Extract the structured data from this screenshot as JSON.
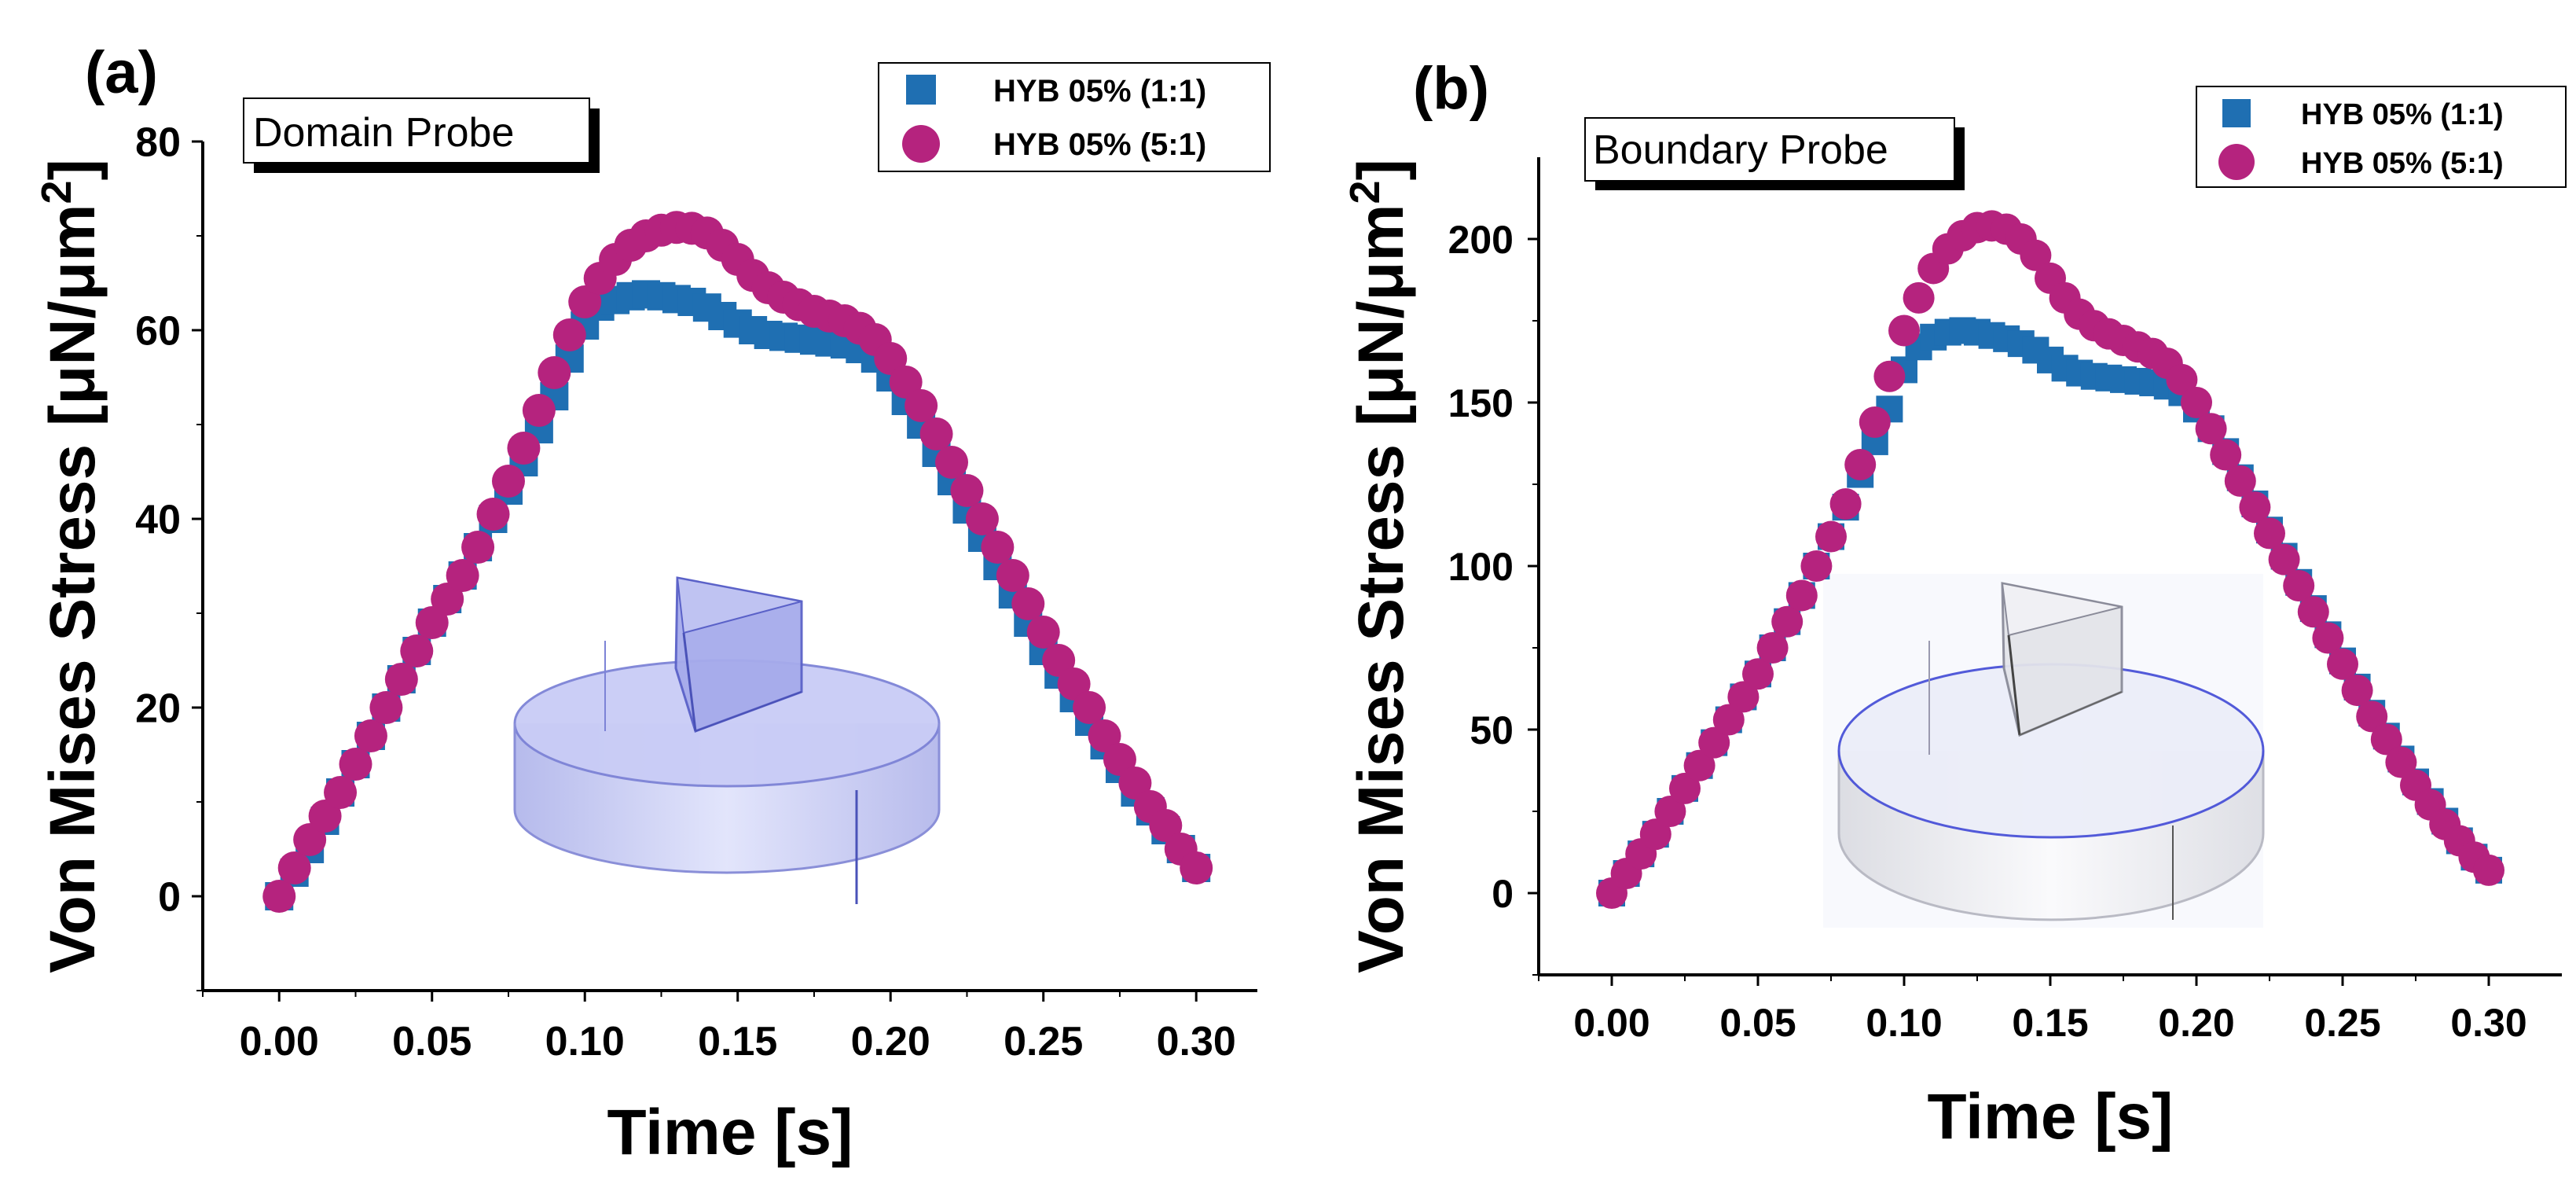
{
  "colors": {
    "series_square": "#1f6fb2",
    "series_circle": "#b5237e",
    "axis": "#000000"
  },
  "chart_data": [
    {
      "panel_label": "(a)",
      "type": "scatter",
      "probe_label": "Domain Probe",
      "xlabel": "Time [s]",
      "ylabel": "Von Mises Stress [μN/μm²]",
      "ylabel_parts": {
        "main": "Von Mises Stress [μN/μm",
        "sup": "2",
        "close": "]"
      },
      "xlim": [
        -0.025,
        0.32
      ],
      "ylim": [
        -10,
        80
      ],
      "xticks": [
        0.0,
        0.05,
        0.1,
        0.15,
        0.2,
        0.25,
        0.3
      ],
      "xtick_labels": [
        "0.00",
        "0.05",
        "0.10",
        "0.15",
        "0.20",
        "0.25",
        "0.30"
      ],
      "yticks": [
        0,
        20,
        40,
        60,
        80
      ],
      "ytick_labels": [
        "0",
        "20",
        "40",
        "60",
        "80"
      ],
      "legend_position": "top-right",
      "series": [
        {
          "name": "HYB 05% (1:1)",
          "marker": "square",
          "x": [
            0.0,
            0.005,
            0.01,
            0.015,
            0.02,
            0.025,
            0.03,
            0.035,
            0.04,
            0.045,
            0.05,
            0.055,
            0.06,
            0.065,
            0.07,
            0.075,
            0.08,
            0.085,
            0.09,
            0.095,
            0.1,
            0.105,
            0.11,
            0.115,
            0.12,
            0.125,
            0.13,
            0.135,
            0.14,
            0.145,
            0.15,
            0.155,
            0.16,
            0.165,
            0.17,
            0.175,
            0.18,
            0.185,
            0.19,
            0.195,
            0.2,
            0.205,
            0.21,
            0.215,
            0.22,
            0.225,
            0.23,
            0.235,
            0.24,
            0.245,
            0.25,
            0.255,
            0.26,
            0.265,
            0.27,
            0.275,
            0.28,
            0.285,
            0.29,
            0.295,
            0.3
          ],
          "y": [
            0,
            2.5,
            5,
            8,
            11,
            14,
            17,
            20,
            23,
            26,
            29,
            31.5,
            34,
            37,
            40,
            43,
            46,
            49.5,
            53,
            57,
            60.5,
            62.5,
            63.2,
            63.6,
            63.8,
            63.6,
            63.3,
            63,
            62.4,
            61.5,
            60.7,
            60,
            59.5,
            59.3,
            59.1,
            58.9,
            58.7,
            58.5,
            58,
            57,
            55,
            52.5,
            50,
            47,
            44,
            41,
            38,
            35,
            32,
            29,
            26,
            23.5,
            21,
            18.5,
            16,
            13.5,
            11,
            9,
            7,
            5,
            3
          ]
        },
        {
          "name": "HYB 05% (5:1)",
          "marker": "circle",
          "x": [
            0.0,
            0.005,
            0.01,
            0.015,
            0.02,
            0.025,
            0.03,
            0.035,
            0.04,
            0.045,
            0.05,
            0.055,
            0.06,
            0.065,
            0.07,
            0.075,
            0.08,
            0.085,
            0.09,
            0.095,
            0.1,
            0.105,
            0.11,
            0.115,
            0.12,
            0.125,
            0.13,
            0.135,
            0.14,
            0.145,
            0.15,
            0.155,
            0.16,
            0.165,
            0.17,
            0.175,
            0.18,
            0.185,
            0.19,
            0.195,
            0.2,
            0.205,
            0.21,
            0.215,
            0.22,
            0.225,
            0.23,
            0.235,
            0.24,
            0.245,
            0.25,
            0.255,
            0.26,
            0.265,
            0.27,
            0.275,
            0.28,
            0.285,
            0.29,
            0.295,
            0.3
          ],
          "y": [
            0,
            3,
            6,
            8.5,
            11,
            14,
            17,
            20,
            23,
            26,
            29,
            31.5,
            34,
            37,
            40.5,
            44,
            47.5,
            51.5,
            55.5,
            59.5,
            63,
            65.5,
            67.5,
            69,
            70,
            70.6,
            70.9,
            70.8,
            70.3,
            69,
            67.5,
            65.8,
            64.5,
            63.5,
            62.7,
            62,
            61.5,
            61,
            60.2,
            59,
            57,
            54.5,
            52,
            49,
            46,
            43,
            40,
            37,
            34,
            31,
            28,
            25,
            22.5,
            20,
            17,
            14.5,
            12,
            9.5,
            7.5,
            5,
            3
          ]
        }
      ]
    },
    {
      "panel_label": "(b)",
      "type": "scatter",
      "probe_label": "Boundary Probe",
      "xlabel": "Time [s]",
      "ylabel": "Von Mises Stress [μN/μm²]",
      "ylabel_parts": {
        "main": "Von Mises Stress [μN/μm",
        "sup": "2",
        "close": "]"
      },
      "xlim": [
        -0.025,
        0.325
      ],
      "ylim": [
        -25,
        225
      ],
      "xticks": [
        0.0,
        0.05,
        0.1,
        0.15,
        0.2,
        0.25,
        0.3
      ],
      "xtick_labels": [
        "0.00",
        "0.05",
        "0.10",
        "0.15",
        "0.20",
        "0.25",
        "0.30"
      ],
      "yticks": [
        0,
        50,
        100,
        150,
        200
      ],
      "ytick_labels": [
        "0",
        "50",
        "100",
        "150",
        "200"
      ],
      "legend_position": "top-right",
      "series": [
        {
          "name": "HYB 05% (1:1)",
          "marker": "square",
          "x": [
            0.0,
            0.005,
            0.01,
            0.015,
            0.02,
            0.025,
            0.03,
            0.035,
            0.04,
            0.045,
            0.05,
            0.055,
            0.06,
            0.065,
            0.07,
            0.075,
            0.08,
            0.085,
            0.09,
            0.095,
            0.1,
            0.105,
            0.11,
            0.115,
            0.12,
            0.125,
            0.13,
            0.135,
            0.14,
            0.145,
            0.15,
            0.155,
            0.16,
            0.165,
            0.17,
            0.175,
            0.18,
            0.185,
            0.19,
            0.195,
            0.2,
            0.205,
            0.21,
            0.215,
            0.22,
            0.225,
            0.23,
            0.235,
            0.24,
            0.245,
            0.25,
            0.255,
            0.26,
            0.265,
            0.27,
            0.275,
            0.28,
            0.285,
            0.29,
            0.295,
            0.3
          ],
          "y": [
            0,
            6,
            12,
            18,
            25,
            32,
            39,
            46,
            53,
            60,
            67,
            75,
            83,
            91,
            100,
            109,
            118,
            128,
            138,
            148,
            160,
            167,
            170,
            171.5,
            172,
            171.5,
            170.5,
            169.5,
            168,
            166,
            163,
            160.5,
            159,
            158,
            157.5,
            157,
            156.5,
            156,
            155,
            153,
            148,
            142,
            135,
            127,
            119,
            111,
            103,
            95,
            87,
            79,
            71,
            63,
            55,
            48,
            41,
            34,
            28,
            22,
            16,
            11,
            7
          ]
        },
        {
          "name": "HYB 05% (5:1)",
          "marker": "circle",
          "x": [
            0.0,
            0.005,
            0.01,
            0.015,
            0.02,
            0.025,
            0.03,
            0.035,
            0.04,
            0.045,
            0.05,
            0.055,
            0.06,
            0.065,
            0.07,
            0.075,
            0.08,
            0.085,
            0.09,
            0.095,
            0.1,
            0.105,
            0.11,
            0.115,
            0.12,
            0.125,
            0.13,
            0.135,
            0.14,
            0.145,
            0.15,
            0.155,
            0.16,
            0.165,
            0.17,
            0.175,
            0.18,
            0.185,
            0.19,
            0.195,
            0.2,
            0.205,
            0.21,
            0.215,
            0.22,
            0.225,
            0.23,
            0.235,
            0.24,
            0.245,
            0.25,
            0.255,
            0.26,
            0.265,
            0.27,
            0.275,
            0.28,
            0.285,
            0.29,
            0.295,
            0.3
          ],
          "y": [
            0,
            6,
            12,
            18,
            25,
            32,
            39,
            46,
            53,
            60,
            67,
            75,
            83,
            91,
            100,
            109,
            119,
            131,
            144,
            158,
            172,
            182,
            191,
            197,
            201,
            203.5,
            204,
            203,
            200,
            195,
            188,
            182,
            177,
            173.5,
            171,
            169,
            167,
            165,
            162,
            157,
            150,
            142,
            134,
            126,
            118,
            110,
            102,
            94,
            86,
            78,
            70,
            62,
            54,
            47,
            40,
            33,
            27,
            21,
            16,
            11,
            7
          ]
        }
      ]
    }
  ]
}
